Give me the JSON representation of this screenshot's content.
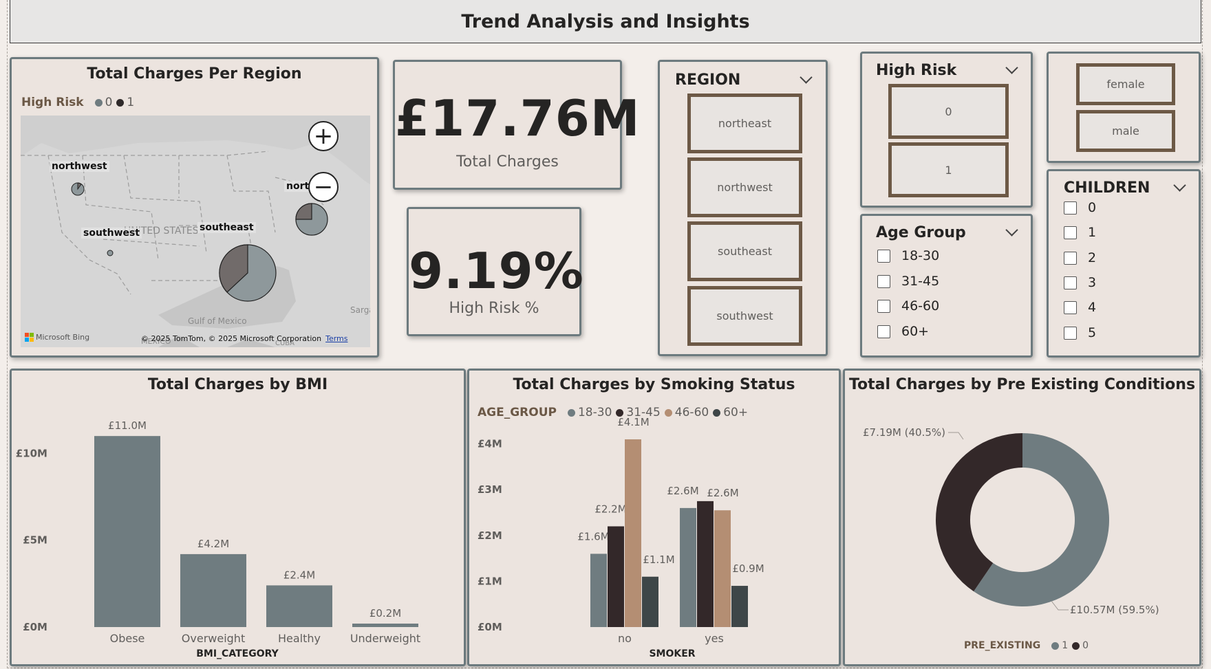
{
  "header": {
    "title": "Trend Analysis and Insights"
  },
  "map_card": {
    "title": "Total Charges Per Region",
    "legend_title": "High Risk",
    "legend_items": [
      {
        "label": "0",
        "color": "#6f7c80"
      },
      {
        "label": "1",
        "color": "#2f2a2a"
      }
    ],
    "region_labels": {
      "northwest": "northwest",
      "southwest": "southwest",
      "southeast": "southeast",
      "northeast": "nort"
    },
    "country_label": "UNITED STATES",
    "gulf_label": "Gulf of Mexico",
    "mexico_label": "MEXICO",
    "cuba_label": "CUBA",
    "sargasso_label": "Sarga",
    "zoom_in": "+",
    "zoom_out": "−",
    "bing_label": "Microsoft Bing",
    "credits": "© 2025 TomTom, © 2025 Microsoft Corporation",
    "terms": "Terms"
  },
  "kpi_total": {
    "value": "£17.76M",
    "label": "Total Charges"
  },
  "kpi_risk": {
    "value": "9.19%",
    "label": "High Risk %"
  },
  "region_slicer": {
    "title": "REGION",
    "items": [
      "northeast",
      "northwest",
      "southeast",
      "southwest"
    ]
  },
  "risk_slicer": {
    "title": "High Risk",
    "items": [
      "0",
      "1"
    ]
  },
  "sex_slicer": {
    "items": [
      "female",
      "male"
    ]
  },
  "age_slicer": {
    "title": "Age Group",
    "items": [
      "18-30",
      "31-45",
      "46-60",
      "60+"
    ]
  },
  "children_slicer": {
    "title": "CHILDREN",
    "items": [
      "0",
      "1",
      "2",
      "3",
      "4",
      "5"
    ]
  },
  "colors": {
    "slate": "#6f7c80",
    "dark": "#332829",
    "tan": "#b48e73",
    "charcoal": "#3e4648"
  },
  "chart_data": [
    {
      "type": "bar",
      "title": "Total Charges by BMI",
      "xlabel": "BMI_CATEGORY",
      "ylabel": "",
      "categories": [
        "Obese",
        "Overweight",
        "Healthy",
        "Underweight"
      ],
      "values": [
        11.0,
        4.2,
        2.4,
        0.2
      ],
      "data_labels": [
        "£11.0M",
        "£4.2M",
        "£2.4M",
        "£0.2M"
      ],
      "yticks": [
        "£0M",
        "£5M",
        "£10M"
      ],
      "ylim": [
        0,
        11.6
      ]
    },
    {
      "type": "bar",
      "title": "Total Charges by Smoking Status",
      "xlabel": "SMOKER",
      "legend_title": "AGE_GROUP",
      "categories": [
        "no",
        "yes"
      ],
      "series": [
        {
          "name": "18-30",
          "values": [
            1.6,
            2.6
          ],
          "labels": [
            "£1.6M",
            "£2.6M"
          ]
        },
        {
          "name": "31-45",
          "values": [
            2.2,
            2.75
          ],
          "labels": [
            "£2.2M",
            ""
          ]
        },
        {
          "name": "46-60",
          "values": [
            4.1,
            2.55
          ],
          "labels": [
            "£4.1M",
            "£2.6M"
          ]
        },
        {
          "name": "60+",
          "values": [
            1.1,
            0.9
          ],
          "labels": [
            "£1.1M",
            "£0.9M"
          ]
        }
      ],
      "yticks": [
        "£0M",
        "£1M",
        "£2M",
        "£3M",
        "£4M"
      ],
      "ylim": [
        0,
        4.4
      ]
    },
    {
      "type": "pie",
      "title": "Total Charges by Pre Existing Conditions",
      "legend_title": "PRE_EXISTING",
      "slices": [
        {
          "name": "1",
          "value": 10.57,
          "label": "£10.57M (59.5%)"
        },
        {
          "name": "0",
          "value": 7.19,
          "label": "£7.19M (40.5%)"
        }
      ]
    }
  ]
}
